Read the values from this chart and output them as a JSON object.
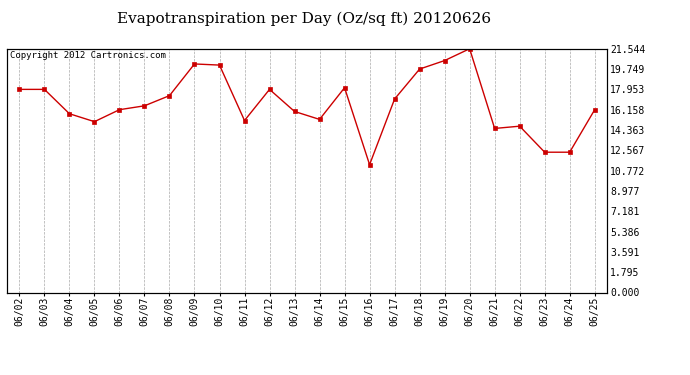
{
  "title": "Evapotranspiration per Day (Oz/sq ft) 20120626",
  "copyright_text": "Copyright 2012 Cartronics.com",
  "dates": [
    "06/02",
    "06/03",
    "06/04",
    "06/05",
    "06/06",
    "06/07",
    "06/08",
    "06/09",
    "06/10",
    "06/11",
    "06/12",
    "06/13",
    "06/14",
    "06/15",
    "06/16",
    "06/17",
    "06/18",
    "06/19",
    "06/20",
    "06/21",
    "06/22",
    "06/23",
    "06/24",
    "06/25"
  ],
  "values": [
    17.953,
    17.953,
    15.8,
    15.1,
    16.158,
    16.5,
    17.4,
    20.2,
    20.1,
    15.2,
    17.953,
    16.0,
    15.3,
    18.1,
    11.3,
    17.1,
    19.749,
    20.5,
    21.544,
    14.5,
    14.7,
    12.4,
    12.4,
    16.158
  ],
  "yticks": [
    0.0,
    1.795,
    3.591,
    5.386,
    7.181,
    8.977,
    10.772,
    12.567,
    14.363,
    16.158,
    17.953,
    19.749,
    21.544
  ],
  "ymin": 0.0,
  "ymax": 21.544,
  "line_color": "#cc0000",
  "marker": "s",
  "marker_size": 2.5,
  "background_color": "#ffffff",
  "grid_color": "#aaaaaa",
  "title_fontsize": 11,
  "tick_fontsize": 7,
  "copyright_fontsize": 6.5
}
